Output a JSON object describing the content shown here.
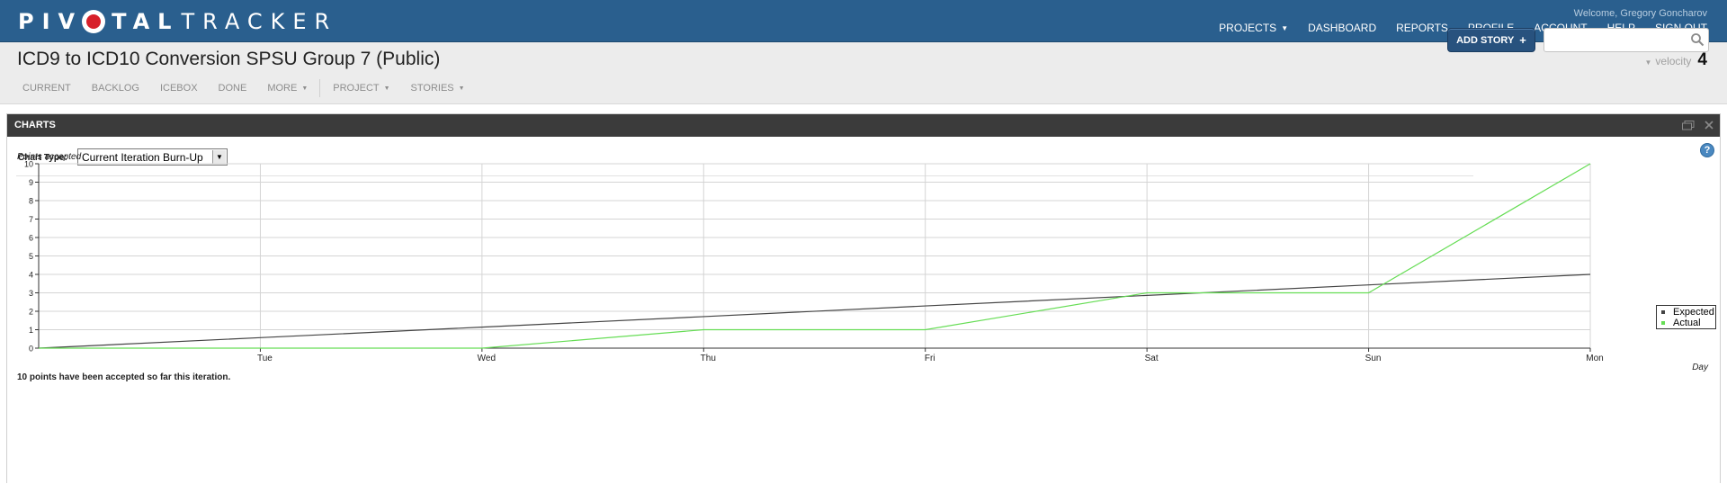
{
  "header": {
    "logo_part1": "PIV",
    "logo_part2": "TAL",
    "logo_part3": "TRACKER",
    "welcome": "Welcome, Gregory Goncharov",
    "nav": [
      {
        "label": "PROJECTS",
        "has_caret": true
      },
      {
        "label": "DASHBOARD"
      },
      {
        "label": "REPORTS"
      },
      {
        "label": "PROFILE"
      },
      {
        "label": "ACCOUNT"
      },
      {
        "label": "HELP"
      },
      {
        "label": "SIGN OUT"
      }
    ]
  },
  "project": {
    "title": "ICD9 to ICD10 Conversion SPSU Group 7 (Public)",
    "tabs": [
      "CURRENT",
      "BACKLOG",
      "ICEBOX",
      "DONE",
      "MORE"
    ],
    "menus": [
      "PROJECT",
      "STORIES"
    ],
    "velocity_label": "velocity",
    "velocity_value": "4",
    "add_story_label": "ADD STORY",
    "search_placeholder": ""
  },
  "panel": {
    "title": "CHARTS",
    "chart_type_label": "Chart Type:",
    "chart_type_value": "Current Iteration Burn-Up",
    "summary": "10 points have been accepted so far this iteration."
  },
  "colors": {
    "header_bg": "#2a5f8e",
    "expected_line": "#444444",
    "actual_line": "#66dd55",
    "add_story_bg": "#28527e"
  },
  "chart_data": {
    "type": "line",
    "ylabel": "Points accepted",
    "xlabel": "Day",
    "x": [
      "",
      "Tue",
      "Wed",
      "Thu",
      "Fri",
      "Sat",
      "Sun",
      "Mon"
    ],
    "ylim": [
      0,
      10
    ],
    "yticks": [
      0,
      1,
      2,
      3,
      4,
      5,
      6,
      7,
      8,
      9,
      10
    ],
    "grid": true,
    "legend_position": "right",
    "series": [
      {
        "name": "Expected",
        "values": [
          0,
          0.57,
          1.14,
          1.71,
          2.29,
          2.86,
          3.43,
          4
        ],
        "color": "#444444"
      },
      {
        "name": "Actual",
        "values": [
          0,
          0,
          0,
          1,
          1,
          3,
          3,
          10
        ],
        "color": "#66dd55"
      }
    ]
  }
}
